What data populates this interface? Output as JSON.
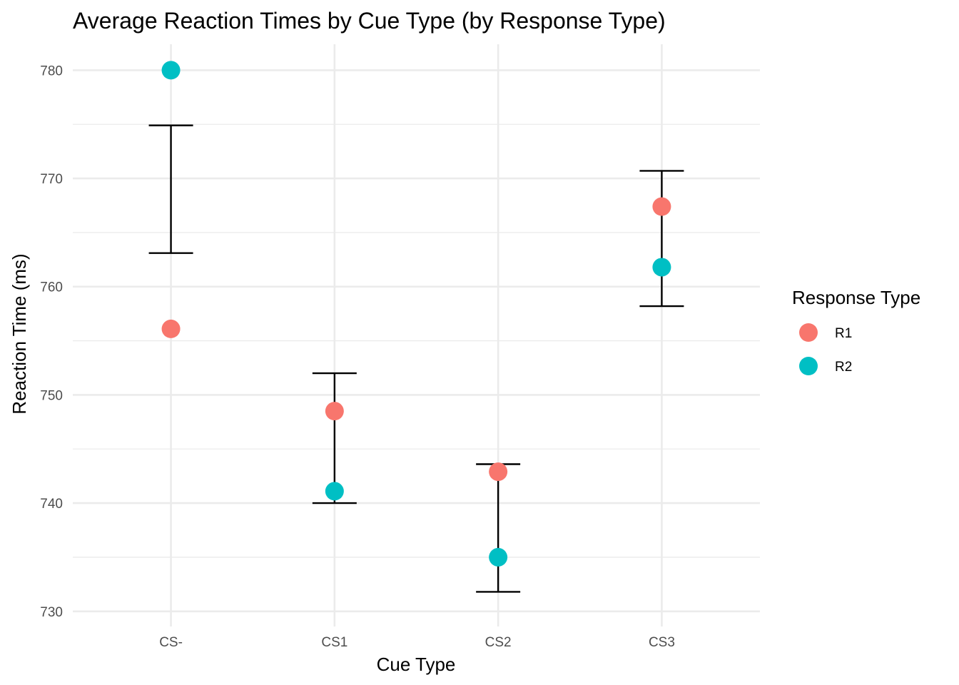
{
  "chart_data": {
    "type": "scatter",
    "title": "Average Reaction Times by Cue Type (by Response Type)",
    "xlabel": "Cue Type",
    "ylabel": "Reaction Time (ms)",
    "categories": [
      "CS-",
      "CS1",
      "CS2",
      "CS3"
    ],
    "ylim": [
      728.6,
      782.4
    ],
    "yticks": [
      730,
      740,
      750,
      760,
      770,
      780
    ],
    "grid": true,
    "legend": {
      "title": "Response Type",
      "placement": "right"
    },
    "series": [
      {
        "name": "R1",
        "color": "#F8766D",
        "values": [
          756.1,
          748.5,
          742.9,
          767.4
        ]
      },
      {
        "name": "R2",
        "color": "#00BFC4",
        "values": [
          780.0,
          741.1,
          735.0,
          761.8
        ]
      }
    ],
    "error_bars": [
      {
        "category": "CS-",
        "low": 763.1,
        "high": 774.9
      },
      {
        "category": "CS1",
        "low": 740.0,
        "high": 752.0
      },
      {
        "category": "CS2",
        "low": 731.8,
        "high": 743.6
      },
      {
        "category": "CS3",
        "low": 758.2,
        "high": 770.7
      }
    ]
  }
}
